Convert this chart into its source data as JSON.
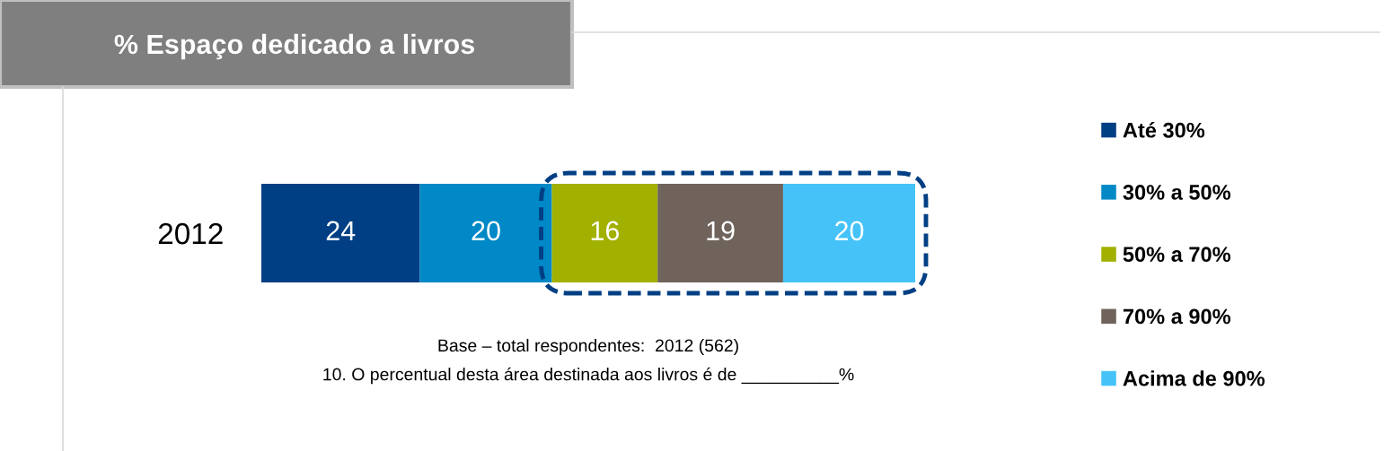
{
  "chart_data": {
    "type": "bar",
    "title": "% Espaço dedicado a livros",
    "orientation": "horizontal",
    "stacked": true,
    "categories": [
      "2012"
    ],
    "series": [
      {
        "name": "Até 30%",
        "color": "#003f84",
        "values": [
          24
        ]
      },
      {
        "name": "30% a 50%",
        "color": "#0088c7",
        "values": [
          20
        ]
      },
      {
        "name": "50% a 70%",
        "color": "#a2b000",
        "values": [
          16
        ]
      },
      {
        "name": "70% a 90%",
        "color": "#6f635c",
        "values": [
          19
        ]
      },
      {
        "name": "Acima de 90%",
        "color": "#45c3f8",
        "values": [
          20
        ]
      }
    ],
    "data_labels": true,
    "legend": "right",
    "tick_labels": "y",
    "grid": false,
    "annotations": [
      "Base – total respondentes:  2012 (562)",
      "10. O percentual desta área destinada aos livros é de __________%"
    ]
  }
}
